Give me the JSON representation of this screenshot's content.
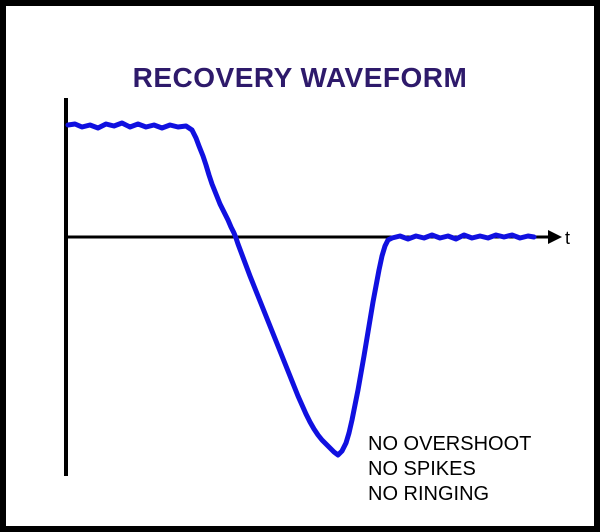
{
  "title": "RECOVERY WAVEFORM",
  "axis": {
    "t_label": "t"
  },
  "notes": [
    "NO OVERSHOOT",
    "NO SPIKES",
    "NO RINGING"
  ],
  "colors": {
    "background": "#000000",
    "panel": "#ffffff",
    "title": "#2e1a6b",
    "waveform": "#1010e0",
    "axes": "#000000"
  }
}
